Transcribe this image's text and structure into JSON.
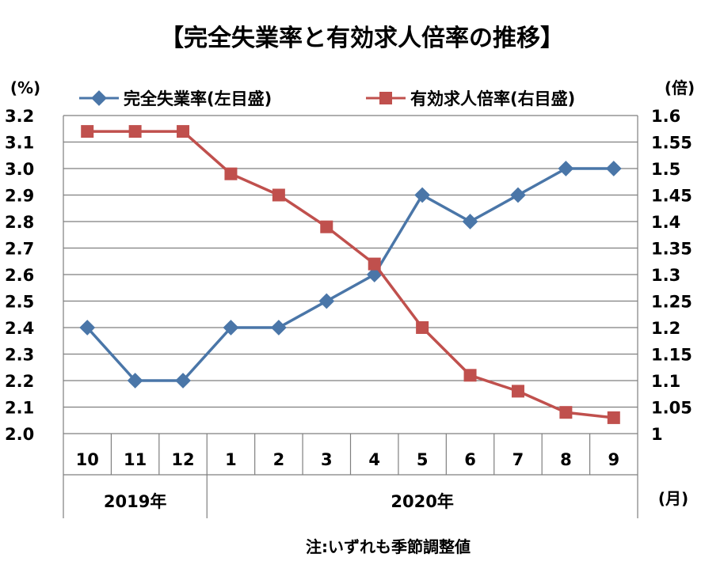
{
  "chart_data": {
    "type": "line",
    "title": "【完全失業率と有効求人倍率の推移】",
    "categories": [
      "10",
      "11",
      "12",
      "1",
      "2",
      "3",
      "4",
      "5",
      "6",
      "7",
      "8",
      "9"
    ],
    "year_groups": [
      {
        "label": "2019年",
        "from": 0,
        "to": 2
      },
      {
        "label": "2020年",
        "from": 3,
        "to": 11
      }
    ],
    "x_unit": "(月)",
    "left_axis": {
      "unit": "(%)",
      "min": 2.0,
      "max": 3.2,
      "step": 0.1,
      "tick_labels": [
        "2.0",
        "2.1",
        "2.2",
        "2.3",
        "2.4",
        "2.5",
        "2.6",
        "2.7",
        "2.8",
        "2.9",
        "3.0",
        "3.1",
        "3.2"
      ]
    },
    "right_axis": {
      "unit": "(倍)",
      "min": 1.0,
      "max": 1.6,
      "step": 0.05,
      "tick_labels": [
        "1",
        "1.05",
        "1.1",
        "1.15",
        "1.2",
        "1.25",
        "1.3",
        "1.35",
        "1.4",
        "1.45",
        "1.5",
        "1.55",
        "1.6"
      ]
    },
    "series": [
      {
        "name": "完全失業率(左目盛)",
        "axis": "left",
        "marker": "diamond",
        "color": "#4a76a8",
        "values": [
          2.4,
          2.2,
          2.2,
          2.4,
          2.4,
          2.5,
          2.6,
          2.9,
          2.8,
          2.9,
          3.0,
          3.0
        ]
      },
      {
        "name": "有効求人倍率(右目盛)",
        "axis": "right",
        "marker": "square",
        "color": "#c0504d",
        "values": [
          1.57,
          1.57,
          1.57,
          1.49,
          1.45,
          1.39,
          1.32,
          1.2,
          1.11,
          1.08,
          1.04,
          1.03
        ]
      }
    ],
    "grid": true,
    "legend_position": "top",
    "note": "注:いずれも季節調整値"
  }
}
